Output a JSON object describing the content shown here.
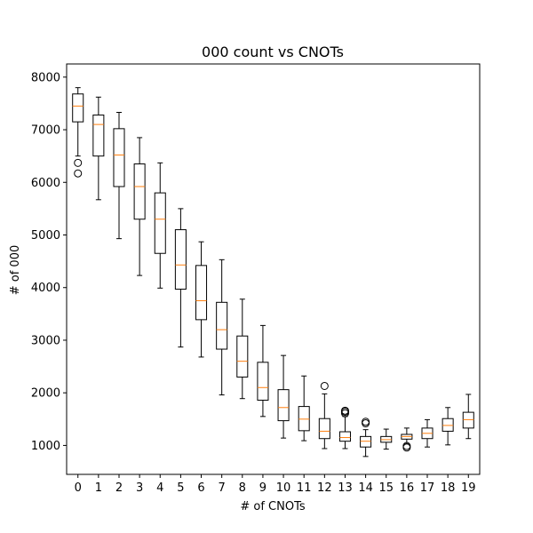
{
  "chart_data": {
    "type": "box",
    "title": "000 count vs CNOTs",
    "xlabel": "# of CNOTs",
    "ylabel": "# of 000",
    "ylim": [
      450,
      8250
    ],
    "yticks": [
      1000,
      2000,
      3000,
      4000,
      5000,
      6000,
      7000,
      8000
    ],
    "categories": [
      "0",
      "1",
      "2",
      "3",
      "4",
      "5",
      "6",
      "7",
      "8",
      "9",
      "10",
      "11",
      "12",
      "13",
      "14",
      "15",
      "16",
      "17",
      "18",
      "19"
    ],
    "boxes": [
      {
        "category": "0",
        "whisker_low": 6500,
        "q1": 7150,
        "median": 7450,
        "q3": 7680,
        "whisker_high": 7800,
        "outliers": [
          6370,
          6170
        ]
      },
      {
        "category": "1",
        "whisker_low": 5670,
        "q1": 6500,
        "median": 7100,
        "q3": 7280,
        "whisker_high": 7620,
        "outliers": []
      },
      {
        "category": "2",
        "whisker_low": 4930,
        "q1": 5920,
        "median": 6520,
        "q3": 7020,
        "whisker_high": 7330,
        "outliers": []
      },
      {
        "category": "3",
        "whisker_low": 4230,
        "q1": 5300,
        "median": 5920,
        "q3": 6350,
        "whisker_high": 6850,
        "outliers": []
      },
      {
        "category": "4",
        "whisker_low": 3990,
        "q1": 4650,
        "median": 5300,
        "q3": 5800,
        "whisker_high": 6370,
        "outliers": []
      },
      {
        "category": "5",
        "whisker_low": 2870,
        "q1": 3970,
        "median": 4430,
        "q3": 5100,
        "whisker_high": 5500,
        "outliers": []
      },
      {
        "category": "6",
        "whisker_low": 2680,
        "q1": 3390,
        "median": 3750,
        "q3": 4420,
        "whisker_high": 4870,
        "outliers": []
      },
      {
        "category": "7",
        "whisker_low": 1960,
        "q1": 2830,
        "median": 3200,
        "q3": 3720,
        "whisker_high": 4530,
        "outliers": []
      },
      {
        "category": "8",
        "whisker_low": 1890,
        "q1": 2300,
        "median": 2600,
        "q3": 3080,
        "whisker_high": 3780,
        "outliers": []
      },
      {
        "category": "9",
        "whisker_low": 1550,
        "q1": 1860,
        "median": 2100,
        "q3": 2580,
        "whisker_high": 3280,
        "outliers": []
      },
      {
        "category": "10",
        "whisker_low": 1140,
        "q1": 1470,
        "median": 1720,
        "q3": 2060,
        "whisker_high": 2710,
        "outliers": []
      },
      {
        "category": "11",
        "whisker_low": 1090,
        "q1": 1280,
        "median": 1500,
        "q3": 1740,
        "whisker_high": 2320,
        "outliers": []
      },
      {
        "category": "12",
        "whisker_low": 940,
        "q1": 1130,
        "median": 1270,
        "q3": 1510,
        "whisker_high": 1980,
        "outliers": [
          2130
        ]
      },
      {
        "category": "13",
        "whisker_low": 940,
        "q1": 1080,
        "median": 1150,
        "q3": 1260,
        "whisker_high": 1550,
        "outliers": [
          1610,
          1640,
          1660
        ]
      },
      {
        "category": "14",
        "whisker_low": 790,
        "q1": 970,
        "median": 1080,
        "q3": 1170,
        "whisker_high": 1300,
        "outliers": [
          1420,
          1450
        ]
      },
      {
        "category": "15",
        "whisker_low": 930,
        "q1": 1060,
        "median": 1110,
        "q3": 1170,
        "whisker_high": 1310,
        "outliers": []
      },
      {
        "category": "16",
        "whisker_low": 1030,
        "q1": 1120,
        "median": 1170,
        "q3": 1210,
        "whisker_high": 1330,
        "outliers": [
          960,
          990
        ]
      },
      {
        "category": "17",
        "whisker_low": 970,
        "q1": 1130,
        "median": 1230,
        "q3": 1330,
        "whisker_high": 1490,
        "outliers": []
      },
      {
        "category": "18",
        "whisker_low": 1010,
        "q1": 1270,
        "median": 1380,
        "q3": 1510,
        "whisker_high": 1720,
        "outliers": []
      },
      {
        "category": "19",
        "whisker_low": 1130,
        "q1": 1330,
        "median": 1490,
        "q3": 1630,
        "whisker_high": 1970,
        "outliers": []
      }
    ],
    "colors": {
      "box": "#000000",
      "median": "#ff7f0e",
      "outlier": "#000000"
    }
  }
}
